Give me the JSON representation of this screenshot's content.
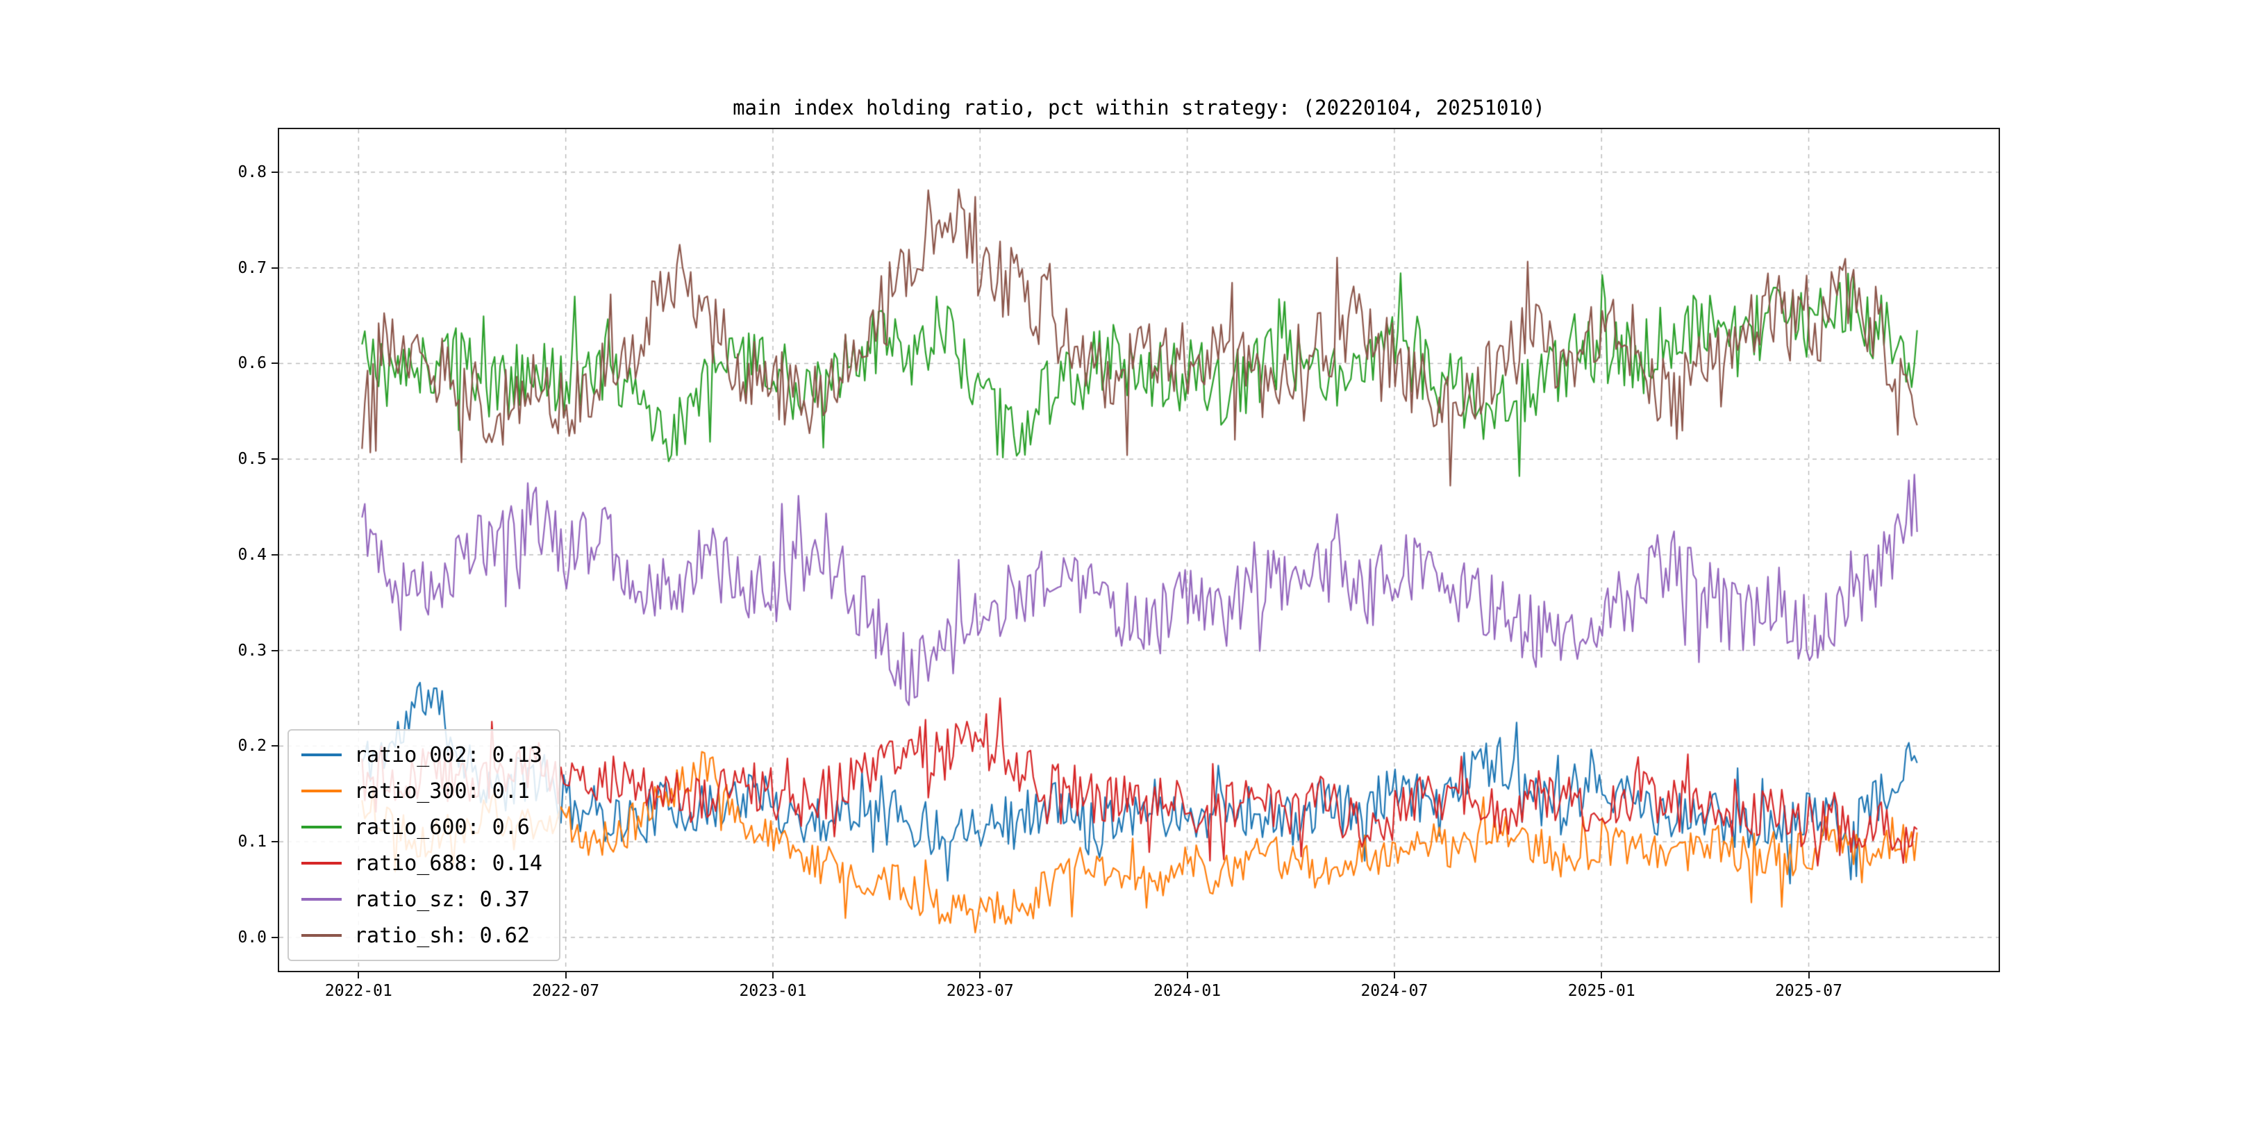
{
  "chart_data": {
    "type": "line",
    "title": "main index holding ratio, pct within strategy: (20220104, 20251010)",
    "date_range": [
      "20220104",
      "20251010"
    ],
    "legend_position": "lower left",
    "grid": true,
    "sample_step_months": 0.08,
    "axes": {
      "xlim_months": [
        -2.3,
        47.5
      ],
      "ylim": [
        -0.035,
        0.845
      ],
      "grid_color": "#b8b8b8",
      "yticks": [
        {
          "value": 0.0,
          "label": "0.0"
        },
        {
          "value": 0.1,
          "label": "0.1"
        },
        {
          "value": 0.2,
          "label": "0.2"
        },
        {
          "value": 0.3,
          "label": "0.3"
        },
        {
          "value": 0.4,
          "label": "0.4"
        },
        {
          "value": 0.5,
          "label": "0.5"
        },
        {
          "value": 0.6,
          "label": "0.6"
        },
        {
          "value": 0.7,
          "label": "0.7"
        },
        {
          "value": 0.8,
          "label": "0.8"
        }
      ],
      "xticks": [
        {
          "month": 0,
          "label": "2022-01"
        },
        {
          "month": 6,
          "label": "2022-07"
        },
        {
          "month": 12,
          "label": "2023-01"
        },
        {
          "month": 18,
          "label": "2023-07"
        },
        {
          "month": 24,
          "label": "2024-01"
        },
        {
          "month": 30,
          "label": "2024-07"
        },
        {
          "month": 36,
          "label": "2025-01"
        },
        {
          "month": 42,
          "label": "2025-07"
        }
      ]
    },
    "series": [
      {
        "name": "ratio_002",
        "legend_label": "ratio_002: 0.13",
        "mean_value": 0.13,
        "color": "#1f77b4",
        "noise": 0.028,
        "seed": 11,
        "start_month": 0.1,
        "end_month": 45.2,
        "anchor_interval": "monthly",
        "anchors": [
          0.18,
          0.2,
          0.26,
          0.19,
          0.15,
          0.17,
          0.14,
          0.13,
          0.12,
          0.14,
          0.13,
          0.15,
          0.14,
          0.12,
          0.13,
          0.15,
          0.12,
          0.11,
          0.13,
          0.12,
          0.14,
          0.12,
          0.13,
          0.14,
          0.12,
          0.14,
          0.13,
          0.12,
          0.14,
          0.13,
          0.15,
          0.14,
          0.17,
          0.19,
          0.14,
          0.13,
          0.16,
          0.14,
          0.12,
          0.13,
          0.12,
          0.11,
          0.13,
          0.12,
          0.14,
          0.18
        ]
      },
      {
        "name": "ratio_300",
        "legend_label": "ratio_300: 0.1",
        "mean_value": 0.1,
        "color": "#ff7f0e",
        "noise": 0.022,
        "seed": 22,
        "start_month": 0.1,
        "end_month": 45.2,
        "anchor_interval": "monthly",
        "anchors": [
          0.14,
          0.12,
          0.1,
          0.12,
          0.13,
          0.11,
          0.12,
          0.1,
          0.12,
          0.15,
          0.19,
          0.12,
          0.1,
          0.08,
          0.07,
          0.06,
          0.05,
          0.03,
          0.04,
          0.03,
          0.05,
          0.08,
          0.06,
          0.05,
          0.08,
          0.06,
          0.09,
          0.08,
          0.07,
          0.09,
          0.08,
          0.1,
          0.09,
          0.11,
          0.1,
          0.08,
          0.1,
          0.09,
          0.08,
          0.1,
          0.09,
          0.08,
          0.09,
          0.1,
          0.09,
          0.1
        ]
      },
      {
        "name": "ratio_600",
        "legend_label": "ratio_600: 0.6",
        "mean_value": 0.6,
        "color": "#2ca02c",
        "noise": 0.038,
        "seed": 33,
        "start_month": 0.1,
        "end_month": 45.2,
        "anchor_interval": "monthly",
        "anchors": [
          0.62,
          0.58,
          0.6,
          0.61,
          0.57,
          0.59,
          0.58,
          0.6,
          0.57,
          0.52,
          0.58,
          0.6,
          0.59,
          0.57,
          0.6,
          0.62,
          0.6,
          0.63,
          0.56,
          0.52,
          0.57,
          0.59,
          0.61,
          0.58,
          0.6,
          0.57,
          0.59,
          0.61,
          0.58,
          0.6,
          0.62,
          0.59,
          0.57,
          0.55,
          0.58,
          0.6,
          0.62,
          0.6,
          0.63,
          0.64,
          0.62,
          0.65,
          0.64,
          0.66,
          0.64,
          0.61
        ]
      },
      {
        "name": "ratio_688",
        "legend_label": "ratio_688: 0.14",
        "mean_value": 0.14,
        "color": "#d62728",
        "noise": 0.028,
        "seed": 44,
        "start_month": 0.1,
        "end_month": 45.2,
        "anchor_interval": "monthly",
        "anchors": [
          0.17,
          0.15,
          0.18,
          0.16,
          0.17,
          0.18,
          0.16,
          0.17,
          0.15,
          0.16,
          0.14,
          0.16,
          0.15,
          0.14,
          0.16,
          0.18,
          0.21,
          0.19,
          0.21,
          0.18,
          0.16,
          0.15,
          0.14,
          0.15,
          0.14,
          0.13,
          0.15,
          0.13,
          0.14,
          0.12,
          0.13,
          0.15,
          0.14,
          0.13,
          0.15,
          0.14,
          0.13,
          0.15,
          0.14,
          0.13,
          0.12,
          0.13,
          0.12,
          0.11,
          0.12,
          0.09
        ]
      },
      {
        "name": "ratio_sz",
        "legend_label": "ratio_sz: 0.37",
        "mean_value": 0.37,
        "color": "#9467bd",
        "noise": 0.038,
        "seed": 55,
        "start_month": 0.1,
        "end_month": 45.2,
        "anchor_interval": "monthly",
        "anchors": [
          0.45,
          0.38,
          0.36,
          0.4,
          0.42,
          0.44,
          0.4,
          0.42,
          0.38,
          0.36,
          0.4,
          0.37,
          0.36,
          0.4,
          0.38,
          0.32,
          0.27,
          0.3,
          0.33,
          0.36,
          0.38,
          0.36,
          0.34,
          0.32,
          0.36,
          0.33,
          0.38,
          0.36,
          0.39,
          0.36,
          0.38,
          0.4,
          0.36,
          0.34,
          0.32,
          0.3,
          0.33,
          0.36,
          0.4,
          0.36,
          0.33,
          0.35,
          0.32,
          0.34,
          0.38,
          0.45
        ]
      },
      {
        "name": "ratio_sh",
        "legend_label": "ratio_sh: 0.62",
        "mean_value": 0.62,
        "color": "#8c564b",
        "noise": 0.04,
        "seed": 66,
        "start_month": 0.1,
        "end_month": 45.2,
        "anchor_interval": "monthly",
        "anchors": [
          0.57,
          0.63,
          0.6,
          0.58,
          0.55,
          0.57,
          0.56,
          0.58,
          0.62,
          0.7,
          0.65,
          0.6,
          0.58,
          0.56,
          0.6,
          0.63,
          0.72,
          0.77,
          0.7,
          0.68,
          0.65,
          0.6,
          0.58,
          0.62,
          0.6,
          0.63,
          0.58,
          0.6,
          0.62,
          0.65,
          0.6,
          0.57,
          0.55,
          0.6,
          0.63,
          0.58,
          0.65,
          0.62,
          0.55,
          0.6,
          0.63,
          0.66,
          0.62,
          0.68,
          0.64,
          0.55
        ]
      }
    ]
  }
}
